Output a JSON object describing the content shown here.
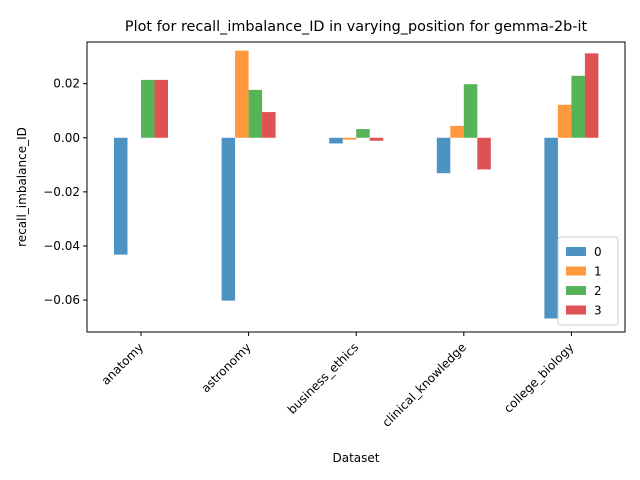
{
  "chart_data": {
    "type": "bar",
    "title": "Plot for recall_imbalance_ID in varying_position for gemma-2b-it",
    "xlabel": "Dataset",
    "ylabel": "recall_imbalance_ID",
    "categories": [
      "anatomy",
      "astronomy",
      "business_ethics",
      "clinical_knowledge",
      "college_biology"
    ],
    "series": [
      {
        "name": "0",
        "color": "#1f77b4",
        "values": [
          -0.0432,
          -0.0602,
          -0.0021,
          -0.0131,
          -0.0668
        ]
      },
      {
        "name": "1",
        "color": "#ff7f0e",
        "values": [
          0.0,
          0.0322,
          -0.0007,
          0.0044,
          0.0122
        ]
      },
      {
        "name": "2",
        "color": "#2ca02c",
        "values": [
          0.0214,
          0.0177,
          0.0032,
          0.0198,
          0.0229
        ]
      },
      {
        "name": "3",
        "color": "#d62728",
        "values": [
          0.0214,
          0.0095,
          -0.0011,
          -0.0117,
          0.0312
        ]
      }
    ],
    "yticks": [
      -0.06,
      -0.04,
      -0.02,
      0.0,
      0.02
    ],
    "ytick_labels": [
      "−0.06",
      "−0.04",
      "−0.02",
      "0.00",
      "0.02"
    ],
    "ylim": [
      -0.0718,
      0.0354
    ],
    "bar_alpha": 0.8,
    "legend_position": "lower-right",
    "grid": false
  }
}
